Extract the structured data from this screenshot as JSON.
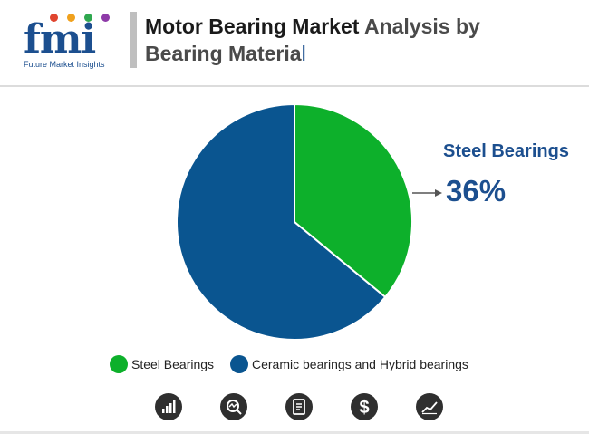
{
  "brand": {
    "logo_text": "fmi",
    "logo_subtitle": "Future Market Insights",
    "dot_colors": [
      "#e0452f",
      "#f0a11d",
      "#2fa84f",
      "#8e3aa8"
    ]
  },
  "header": {
    "title_part1": "Motor Bearing Market",
    "title_part2": " Analysis by",
    "title_part3": "Bearing Materia",
    "title_cursor": "l"
  },
  "callout": {
    "label": "Steel Bearings",
    "value": "36%"
  },
  "chart_data": {
    "type": "pie",
    "categories": [
      "Steel Bearings",
      "Ceramic bearings and Hybrid bearings"
    ],
    "values": [
      36,
      64
    ],
    "colors": [
      "#0db02b",
      "#0a5590"
    ],
    "legend_position": "bottom"
  },
  "footer_icons": [
    "bar-chart-icon",
    "search-analytics-icon",
    "document-icon",
    "dollar-icon",
    "trend-chart-icon"
  ]
}
